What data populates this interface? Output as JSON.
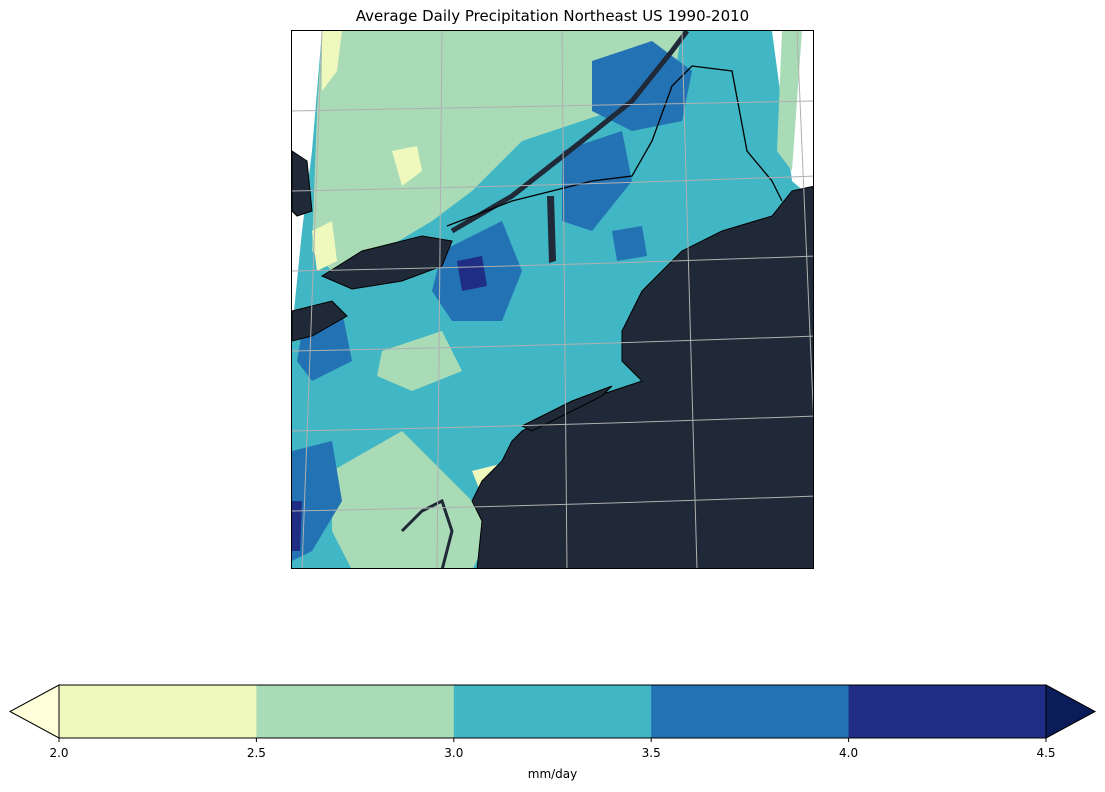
{
  "title": "Average Daily Precipitation Northeast US 1990-2010",
  "colorbar": {
    "label": "mm/day",
    "ticks": [
      "2.0",
      "2.5",
      "3.0",
      "3.5",
      "4.0",
      "4.5"
    ],
    "levels": [
      2.0,
      2.5,
      3.0,
      3.5,
      4.0,
      4.5
    ],
    "colors": [
      "#f0f9bd",
      "#a9dbb6",
      "#41b6c4",
      "#2272b4",
      "#1f2d85"
    ],
    "under_color": "#ffffd9",
    "over_color": "#0a1d5a",
    "extend": "both"
  },
  "map": {
    "region": "Northeast US",
    "ocean_color": "#1f2937",
    "gridlines": true,
    "coastlines": true
  }
}
